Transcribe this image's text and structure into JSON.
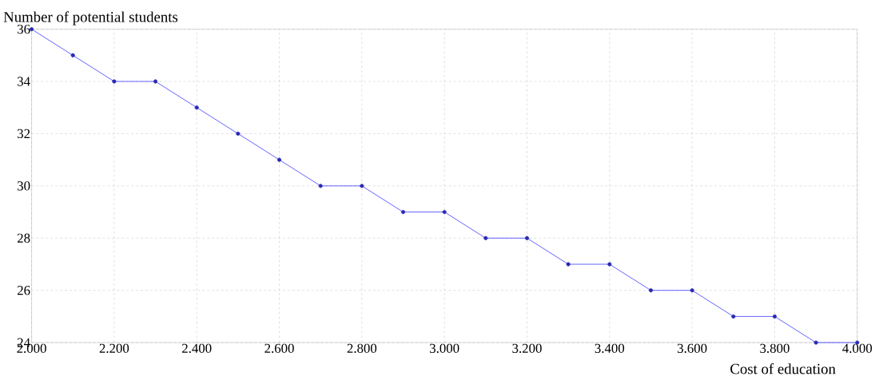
{
  "chart_data": {
    "type": "line",
    "xlabel": "Cost  of  education",
    "ylabel": "Number of potential students",
    "x": [
      2000,
      2100,
      2200,
      2300,
      2400,
      2500,
      2600,
      2700,
      2800,
      2900,
      3000,
      3100,
      3200,
      3300,
      3400,
      3500,
      3600,
      3700,
      3800,
      3900,
      4000
    ],
    "series": [
      {
        "color": "#3a3aff",
        "values": [
          36,
          35,
          34,
          34,
          33,
          32,
          31,
          30,
          30,
          29,
          29,
          28,
          28,
          27,
          27,
          26,
          26,
          25,
          25,
          24,
          24
        ]
      }
    ],
    "xlim": [
      2000,
      4000
    ],
    "ylim": [
      24,
      36
    ],
    "xticks": [
      {
        "value": 2000,
        "label": "2.000"
      },
      {
        "value": 2200,
        "label": "2.200"
      },
      {
        "value": 2400,
        "label": "2.400"
      },
      {
        "value": 2600,
        "label": "2.600"
      },
      {
        "value": 2800,
        "label": "2.800"
      },
      {
        "value": 3000,
        "label": "3.000"
      },
      {
        "value": 3200,
        "label": "3.200"
      },
      {
        "value": 3400,
        "label": "3.400"
      },
      {
        "value": 3600,
        "label": "3.600"
      },
      {
        "value": 3800,
        "label": "3.800"
      },
      {
        "value": 4000,
        "label": "4.000"
      }
    ],
    "yticks": [
      24,
      26,
      28,
      30,
      32,
      34,
      36
    ],
    "grid": true,
    "marker": "circle",
    "line_style": "solid"
  }
}
